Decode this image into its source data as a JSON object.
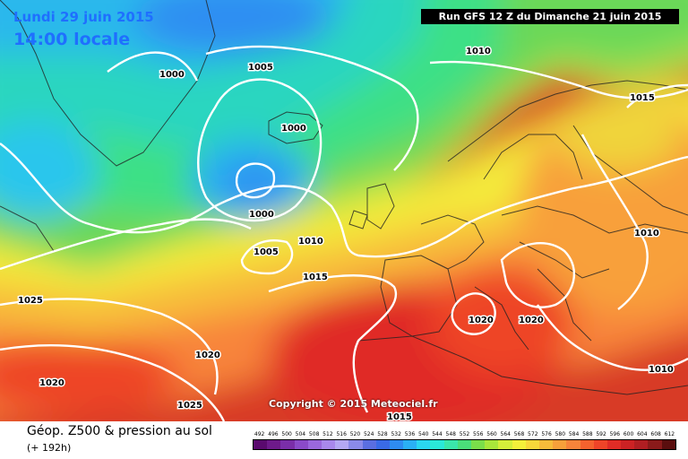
{
  "header": {
    "date": "Lundi 29 juin 2015",
    "time": "14:00 locale",
    "run": "Run GFS 12 Z du Dimanche 21 juin 2015"
  },
  "isobars": [
    {
      "text": "1000"
    },
    {
      "text": "1005"
    },
    {
      "text": "1010"
    },
    {
      "text": "1015"
    },
    {
      "text": "1000"
    },
    {
      "text": "1000"
    },
    {
      "text": "1005"
    },
    {
      "text": "1010"
    },
    {
      "text": "1015"
    },
    {
      "text": "1010"
    },
    {
      "text": "1025"
    },
    {
      "text": "1020"
    },
    {
      "text": "1020"
    },
    {
      "text": "1020"
    },
    {
      "text": "1020"
    },
    {
      "text": "1025"
    },
    {
      "text": "1015"
    },
    {
      "text": "1010"
    }
  ],
  "copyright": "Copyright © 2015 Meteociel.fr",
  "footer": {
    "title": "Géop. Z500 & pression au sol",
    "subtitle": "(+ 192h)"
  },
  "scale": {
    "labels": [
      "492",
      "496",
      "500",
      "504",
      "508",
      "512",
      "516",
      "520",
      "524",
      "528",
      "532",
      "536",
      "540",
      "544",
      "548",
      "552",
      "556",
      "560",
      "564",
      "568",
      "572",
      "576",
      "580",
      "584",
      "588",
      "592",
      "596",
      "600",
      "604",
      "608",
      "612"
    ],
    "colors": [
      "#5a0a6e",
      "#6e1a8a",
      "#7a2ea8",
      "#8a4ac8",
      "#9a68dc",
      "#a888ec",
      "#b4a8f4",
      "#8a8ae8",
      "#5a6ee0",
      "#3a6ae6",
      "#2e8cf0",
      "#2ab0f4",
      "#2ad6f0",
      "#2ae8d8",
      "#3ae6aa",
      "#4ade7a",
      "#7ade4a",
      "#a8e63a",
      "#d4ee3a",
      "#f4f03a",
      "#f8d83a",
      "#f8bc3a",
      "#f8a03a",
      "#f8843a",
      "#f4622e",
      "#ee4428",
      "#e02c26",
      "#cc2224",
      "#b01e22",
      "#8a1a1a",
      "#5a0e0e"
    ]
  }
}
